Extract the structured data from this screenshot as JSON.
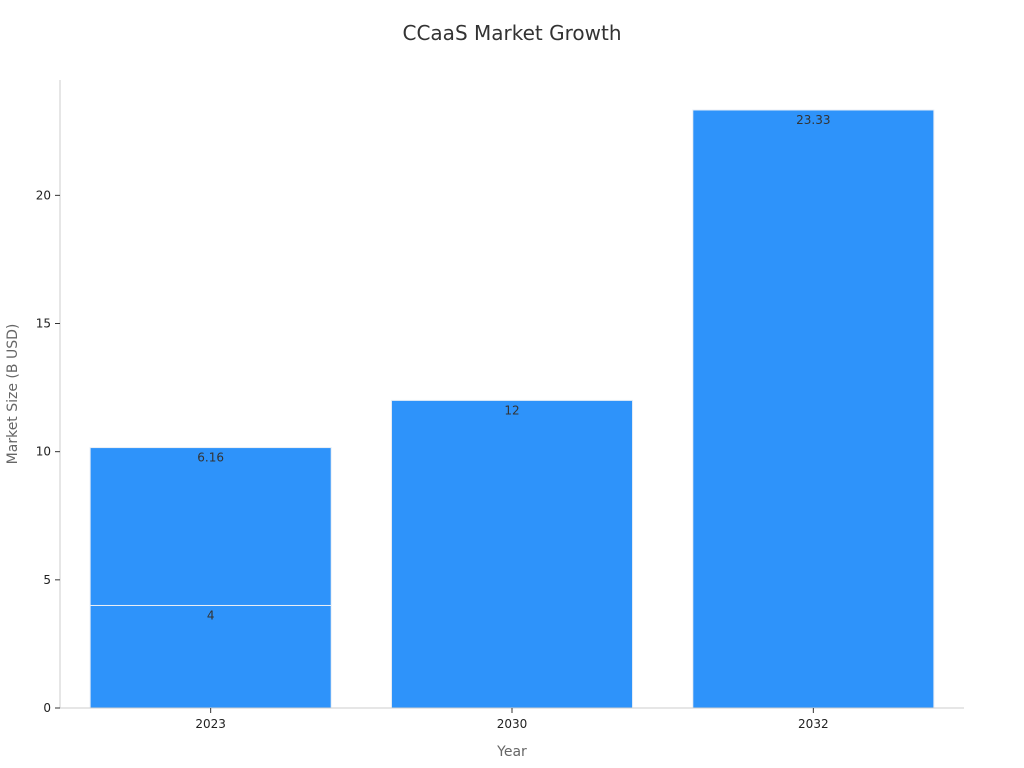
{
  "chart_data": {
    "type": "bar",
    "stacked": true,
    "title": "CCaaS Market Growth",
    "xlabel": "Year",
    "ylabel": "Market Size (B USD)",
    "categories": [
      "2023",
      "2030",
      "2032"
    ],
    "series": [
      {
        "values": [
          4,
          12,
          23.33
        ]
      },
      {
        "values": [
          6.16,
          null,
          null
        ]
      }
    ],
    "ylim": [
      0,
      24.5
    ],
    "yticks": [
      0,
      5,
      10,
      15,
      20
    ],
    "grid": false,
    "legend": "none",
    "colors": {
      "bar": "#2E93FA",
      "axis": "#cccccc",
      "title": "#333333"
    }
  }
}
